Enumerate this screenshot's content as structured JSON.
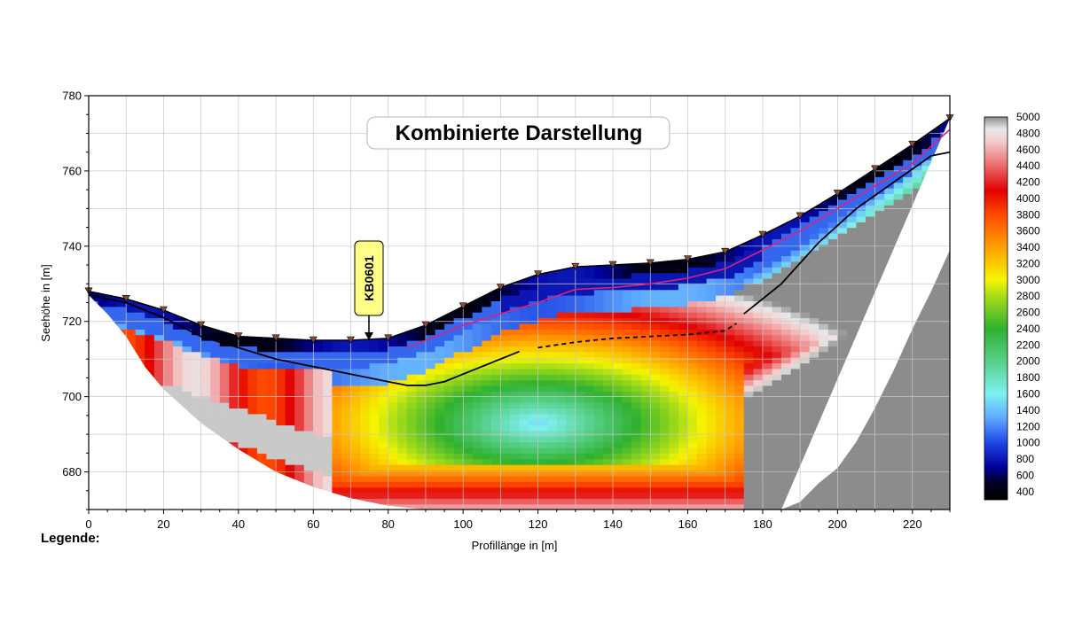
{
  "chart_data": {
    "type": "heatmap",
    "title": "Kombinierte Darstellung",
    "xlabel": "Profillänge in [m]",
    "ylabel": "Seehöhe in [m]",
    "xlim": [
      0,
      230
    ],
    "ylim": [
      670,
      780
    ],
    "x_ticks": [
      0,
      20,
      40,
      60,
      80,
      100,
      120,
      140,
      160,
      180,
      200,
      220
    ],
    "y_ticks": [
      680,
      700,
      720,
      740,
      760,
      780
    ],
    "grid": true,
    "colorbar": {
      "ticks": [
        5000,
        4800,
        4600,
        4400,
        4200,
        4000,
        3800,
        3600,
        3400,
        3200,
        3000,
        2800,
        2600,
        2400,
        2200,
        2000,
        1800,
        1600,
        1400,
        1200,
        1000,
        800,
        600,
        400
      ],
      "range": [
        300,
        5000
      ],
      "stops": [
        {
          "v": 300,
          "c": "#000000"
        },
        {
          "v": 500,
          "c": "#000020"
        },
        {
          "v": 700,
          "c": "#00009a"
        },
        {
          "v": 1000,
          "c": "#1e46e6"
        },
        {
          "v": 1300,
          "c": "#5fa8ff"
        },
        {
          "v": 1600,
          "c": "#7ff0f0"
        },
        {
          "v": 2000,
          "c": "#58d08a"
        },
        {
          "v": 2400,
          "c": "#2fb12f"
        },
        {
          "v": 2800,
          "c": "#a8dd18"
        },
        {
          "v": 3000,
          "c": "#f5f500"
        },
        {
          "v": 3400,
          "c": "#ffa000"
        },
        {
          "v": 3800,
          "c": "#ff4a00"
        },
        {
          "v": 4100,
          "c": "#e10000"
        },
        {
          "v": 4400,
          "c": "#ec6a6a"
        },
        {
          "v": 4700,
          "c": "#f4cccc"
        },
        {
          "v": 4850,
          "c": "#e8e8e8"
        },
        {
          "v": 5000,
          "c": "#8c8c8c"
        }
      ]
    },
    "surface_topography": [
      [
        0,
        728
      ],
      [
        10,
        726
      ],
      [
        20,
        723
      ],
      [
        30,
        719
      ],
      [
        40,
        716
      ],
      [
        50,
        715.5
      ],
      [
        60,
        715
      ],
      [
        70,
        715
      ],
      [
        80,
        715.5
      ],
      [
        90,
        719
      ],
      [
        100,
        724
      ],
      [
        110,
        729
      ],
      [
        120,
        732.5
      ],
      [
        130,
        734.5
      ],
      [
        140,
        735
      ],
      [
        150,
        735.5
      ],
      [
        160,
        736.5
      ],
      [
        170,
        738.5
      ],
      [
        180,
        743
      ],
      [
        190,
        748
      ],
      [
        200,
        754
      ],
      [
        210,
        760.5
      ],
      [
        220,
        767
      ],
      [
        230,
        774
      ]
    ],
    "model_bottom": [
      [
        0,
        727
      ],
      [
        5,
        722
      ],
      [
        10,
        716
      ],
      [
        15,
        708
      ],
      [
        20,
        702
      ],
      [
        30,
        693
      ],
      [
        40,
        686
      ],
      [
        50,
        680
      ],
      [
        60,
        676
      ],
      [
        70,
        673
      ],
      [
        80,
        671
      ],
      [
        90,
        670
      ],
      [
        230,
        670
      ],
      [
        230,
        739
      ],
      [
        225,
        728
      ],
      [
        220,
        718
      ],
      [
        215,
        707
      ],
      [
        210,
        697
      ],
      [
        205,
        688
      ],
      [
        200,
        681
      ],
      [
        195,
        677
      ],
      [
        190,
        672
      ],
      [
        185,
        670
      ]
    ],
    "boundaries": [
      {
        "points": [
          [
            0,
            727
          ],
          [
            10,
            725
          ],
          [
            20,
            721
          ],
          [
            30,
            716
          ],
          [
            40,
            713
          ],
          [
            50,
            710
          ],
          [
            60,
            708
          ],
          [
            70,
            706
          ],
          [
            80,
            704
          ],
          [
            85,
            703
          ],
          [
            90,
            703
          ],
          [
            95,
            704
          ],
          [
            100,
            706
          ],
          [
            105,
            708
          ],
          [
            110,
            710
          ],
          [
            115,
            712
          ]
        ],
        "style": "solid",
        "color": "#000000"
      },
      {
        "points": [
          [
            120,
            713
          ],
          [
            130,
            714.5
          ],
          [
            140,
            715.5
          ],
          [
            150,
            716
          ],
          [
            160,
            716.5
          ],
          [
            170,
            717.5
          ],
          [
            173,
            719.5
          ]
        ],
        "style": "dashed",
        "color": "#000000"
      },
      {
        "points": [
          [
            175,
            722
          ],
          [
            185,
            730
          ],
          [
            195,
            741
          ],
          [
            205,
            750
          ],
          [
            215,
            757
          ],
          [
            225,
            764
          ],
          [
            230,
            765
          ]
        ],
        "style": "solid",
        "color": "#000000"
      },
      {
        "points": [
          [
            85,
            713
          ],
          [
            90,
            715
          ],
          [
            100,
            719
          ],
          [
            110,
            722
          ],
          [
            120,
            725
          ],
          [
            130,
            728.5
          ],
          [
            140,
            729
          ],
          [
            150,
            730
          ],
          [
            160,
            731.5
          ],
          [
            170,
            734
          ],
          [
            180,
            739
          ],
          [
            190,
            744
          ],
          [
            200,
            750
          ],
          [
            210,
            756
          ],
          [
            220,
            762
          ],
          [
            230,
            771
          ]
        ],
        "style": "solid",
        "color": "#e0207a"
      }
    ],
    "borehole": {
      "label": "KB0601",
      "x": 75
    }
  },
  "legend_label": "Legende:"
}
